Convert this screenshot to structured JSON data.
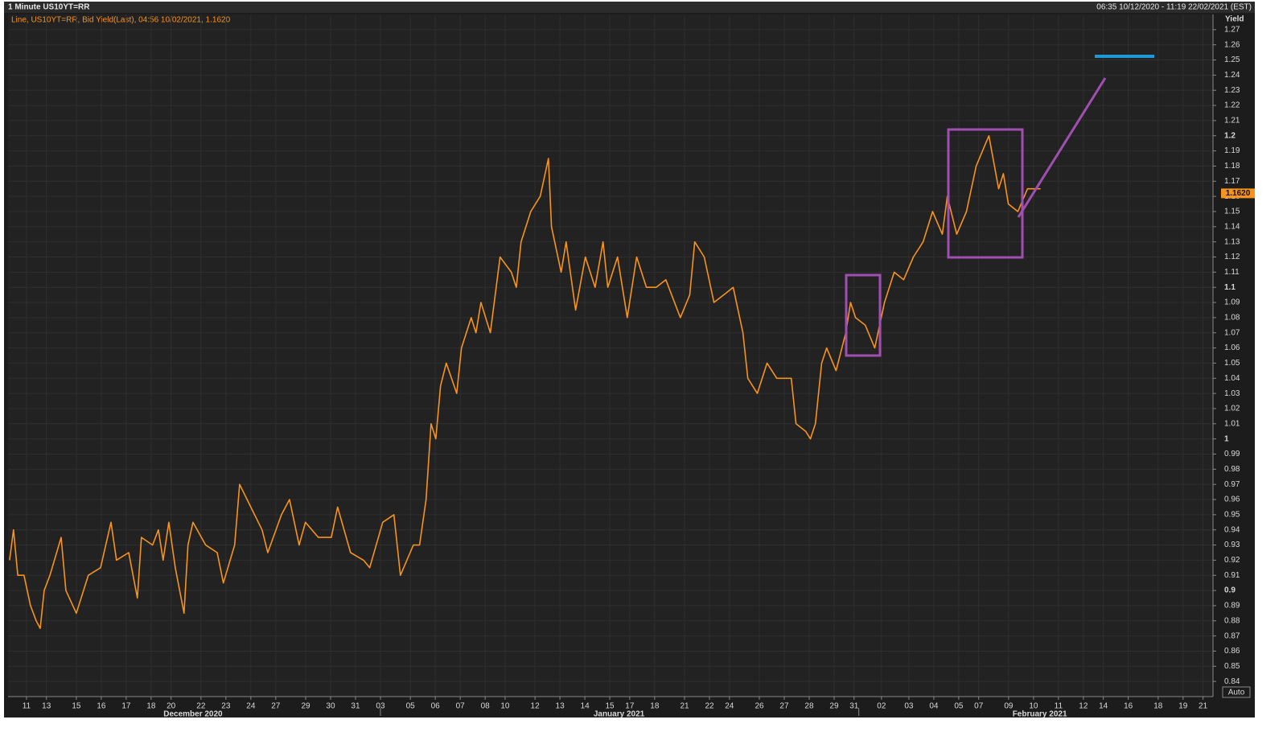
{
  "chart_data": {
    "type": "line",
    "title": "1 Minute US10YT=RR",
    "subtitle": "06:35 10/12/2020 - 11:19 22/02/2021 (EST)",
    "ylabel": "Yield",
    "scale_mode": "Auto",
    "grid": true,
    "ylim": [
      0.83,
      1.28
    ],
    "yticks": [
      0.84,
      0.85,
      0.86,
      0.87,
      0.88,
      0.89,
      0.9,
      0.91,
      0.92,
      0.93,
      0.94,
      0.95,
      0.96,
      0.97,
      0.98,
      0.99,
      1,
      1.01,
      1.02,
      1.03,
      1.04,
      1.05,
      1.06,
      1.07,
      1.08,
      1.09,
      1.1,
      1.11,
      1.12,
      1.13,
      1.14,
      1.15,
      1.16,
      1.17,
      1.18,
      1.19,
      1.2,
      1.21,
      1.22,
      1.23,
      1.24,
      1.25,
      1.26,
      1.27
    ],
    "xlim": [
      -0.74,
      47.6
    ],
    "xticks": [
      {
        "value": 0,
        "label": "11"
      },
      {
        "value": 0.8,
        "label": "13"
      },
      {
        "value": 2,
        "label": "15"
      },
      {
        "value": 3,
        "label": "16"
      },
      {
        "value": 4,
        "label": "17"
      },
      {
        "value": 5,
        "label": "18"
      },
      {
        "value": 5.8,
        "label": "20"
      },
      {
        "value": 7,
        "label": "22"
      },
      {
        "value": 8,
        "label": "23"
      },
      {
        "value": 9,
        "label": "24"
      },
      {
        "value": 10,
        "label": "27"
      },
      {
        "value": 11.2,
        "label": "29"
      },
      {
        "value": 12.2,
        "label": "30"
      },
      {
        "value": 13.2,
        "label": "31"
      },
      {
        "value": 14.2,
        "label": "03"
      },
      {
        "value": 15.4,
        "label": "05"
      },
      {
        "value": 16.4,
        "label": "06"
      },
      {
        "value": 17.4,
        "label": "07"
      },
      {
        "value": 18.4,
        "label": "08"
      },
      {
        "value": 19.2,
        "label": "10"
      },
      {
        "value": 20.4,
        "label": "12"
      },
      {
        "value": 21.4,
        "label": "13"
      },
      {
        "value": 22.4,
        "label": "14"
      },
      {
        "value": 23.4,
        "label": "15"
      },
      {
        "value": 24.2,
        "label": "17"
      },
      {
        "value": 25.2,
        "label": "18"
      },
      {
        "value": 26.4,
        "label": "21"
      },
      {
        "value": 27.4,
        "label": "22"
      },
      {
        "value": 28.2,
        "label": "24"
      },
      {
        "value": 29.4,
        "label": "26"
      },
      {
        "value": 30.4,
        "label": "27"
      },
      {
        "value": 31.4,
        "label": "28"
      },
      {
        "value": 32.4,
        "label": "29"
      },
      {
        "value": 33.2,
        "label": "31"
      },
      {
        "value": 34.3,
        "label": "02"
      },
      {
        "value": 35.4,
        "label": "03"
      },
      {
        "value": 36.4,
        "label": "04"
      },
      {
        "value": 37.4,
        "label": "05"
      },
      {
        "value": 38.2,
        "label": "07"
      },
      {
        "value": 39.4,
        "label": "09"
      },
      {
        "value": 40.4,
        "label": "10"
      },
      {
        "value": 41.4,
        "label": "11"
      },
      {
        "value": 42.4,
        "label": "12"
      },
      {
        "value": 43.2,
        "label": "14"
      },
      {
        "value": 44.2,
        "label": "16"
      },
      {
        "value": 45.4,
        "label": "18"
      },
      {
        "value": 46.4,
        "label": "19"
      },
      {
        "value": 47.2,
        "label": "21"
      }
    ],
    "month_labels": [
      {
        "value": 6.68,
        "label": "December 2020"
      },
      {
        "value": 23.77,
        "label": "January 2021"
      },
      {
        "value": 40.65,
        "label": "February 2021"
      }
    ],
    "month_breaks": [
      14.2,
      33.39
    ],
    "current": {
      "value": 1.162,
      "label": "1.1620"
    },
    "x": [
      -0.68,
      -0.52,
      -0.35,
      -0.1,
      0.16,
      0.39,
      0.55,
      0.71,
      0.94,
      1.39,
      1.58,
      2,
      2.48,
      2.97,
      3.39,
      3.61,
      4.1,
      4.45,
      4.61,
      5.06,
      5.29,
      5.48,
      5.71,
      5.97,
      6.32,
      6.48,
      6.68,
      7.19,
      7.65,
      7.9,
      8.35,
      8.55,
      9,
      9.45,
      9.68,
      10.23,
      10.55,
      10.94,
      11.19,
      11.71,
      12.23,
      12.48,
      13,
      13.52,
      13.77,
      14.29,
      14.74,
      15,
      15.52,
      15.77,
      16.03,
      16.23,
      16.42,
      16.61,
      16.84,
      17.26,
      17.45,
      17.84,
      18.03,
      18.23,
      18.61,
      19,
      19.45,
      19.65,
      19.84,
      20.23,
      20.61,
      20.94,
      21.06,
      21.45,
      21.65,
      22.03,
      22.42,
      22.81,
      23.13,
      23.32,
      23.71,
      24.1,
      24.48,
      24.87,
      25.26,
      25.65,
      26.23,
      26.61,
      26.81,
      27.19,
      27.58,
      27.97,
      28.35,
      28.74,
      28.94,
      29.32,
      29.71,
      30.1,
      30.68,
      30.87,
      31.26,
      31.45,
      31.65,
      31.9,
      32.1,
      32.48,
      32.87,
      33.06,
      33.26,
      33.65,
      34.03,
      34.42,
      34.81,
      35.19,
      35.58,
      35.97,
      36.35,
      36.74,
      36.94,
      37.32,
      37.71,
      38.1,
      38.48,
      38.61,
      39,
      39.19,
      39.39,
      39.77,
      40.16,
      40.68
    ],
    "series": [
      {
        "name": "Line, US10YT=RR, Bid Yield(Last), 04:56 10/02/2021, 1.1620",
        "color": "#f7931e",
        "values": [
          0.92,
          0.94,
          0.91,
          0.91,
          0.89,
          0.88,
          0.875,
          0.9,
          0.91,
          0.935,
          0.9,
          0.885,
          0.91,
          0.915,
          0.945,
          0.92,
          0.925,
          0.895,
          0.935,
          0.93,
          0.94,
          0.92,
          0.945,
          0.915,
          0.885,
          0.93,
          0.945,
          0.93,
          0.925,
          0.905,
          0.93,
          0.97,
          0.955,
          0.94,
          0.925,
          0.95,
          0.96,
          0.93,
          0.945,
          0.935,
          0.935,
          0.955,
          0.925,
          0.92,
          0.915,
          0.945,
          0.95,
          0.91,
          0.93,
          0.93,
          0.96,
          1.01,
          1,
          1.035,
          1.05,
          1.03,
          1.06,
          1.08,
          1.07,
          1.09,
          1.07,
          1.12,
          1.11,
          1.1,
          1.13,
          1.15,
          1.16,
          1.185,
          1.14,
          1.11,
          1.13,
          1.085,
          1.12,
          1.1,
          1.13,
          1.1,
          1.12,
          1.08,
          1.12,
          1.1,
          1.1,
          1.105,
          1.08,
          1.095,
          1.13,
          1.12,
          1.09,
          1.095,
          1.1,
          1.07,
          1.04,
          1.03,
          1.05,
          1.04,
          1.04,
          1.01,
          1.005,
          1,
          1.01,
          1.05,
          1.06,
          1.045,
          1.07,
          1.09,
          1.08,
          1.075,
          1.06,
          1.09,
          1.11,
          1.105,
          1.12,
          1.13,
          1.15,
          1.135,
          1.16,
          1.135,
          1.15,
          1.18,
          1.195,
          1.2,
          1.165,
          1.175,
          1.155,
          1.15,
          1.165,
          1.165
        ]
      }
    ]
  }
}
